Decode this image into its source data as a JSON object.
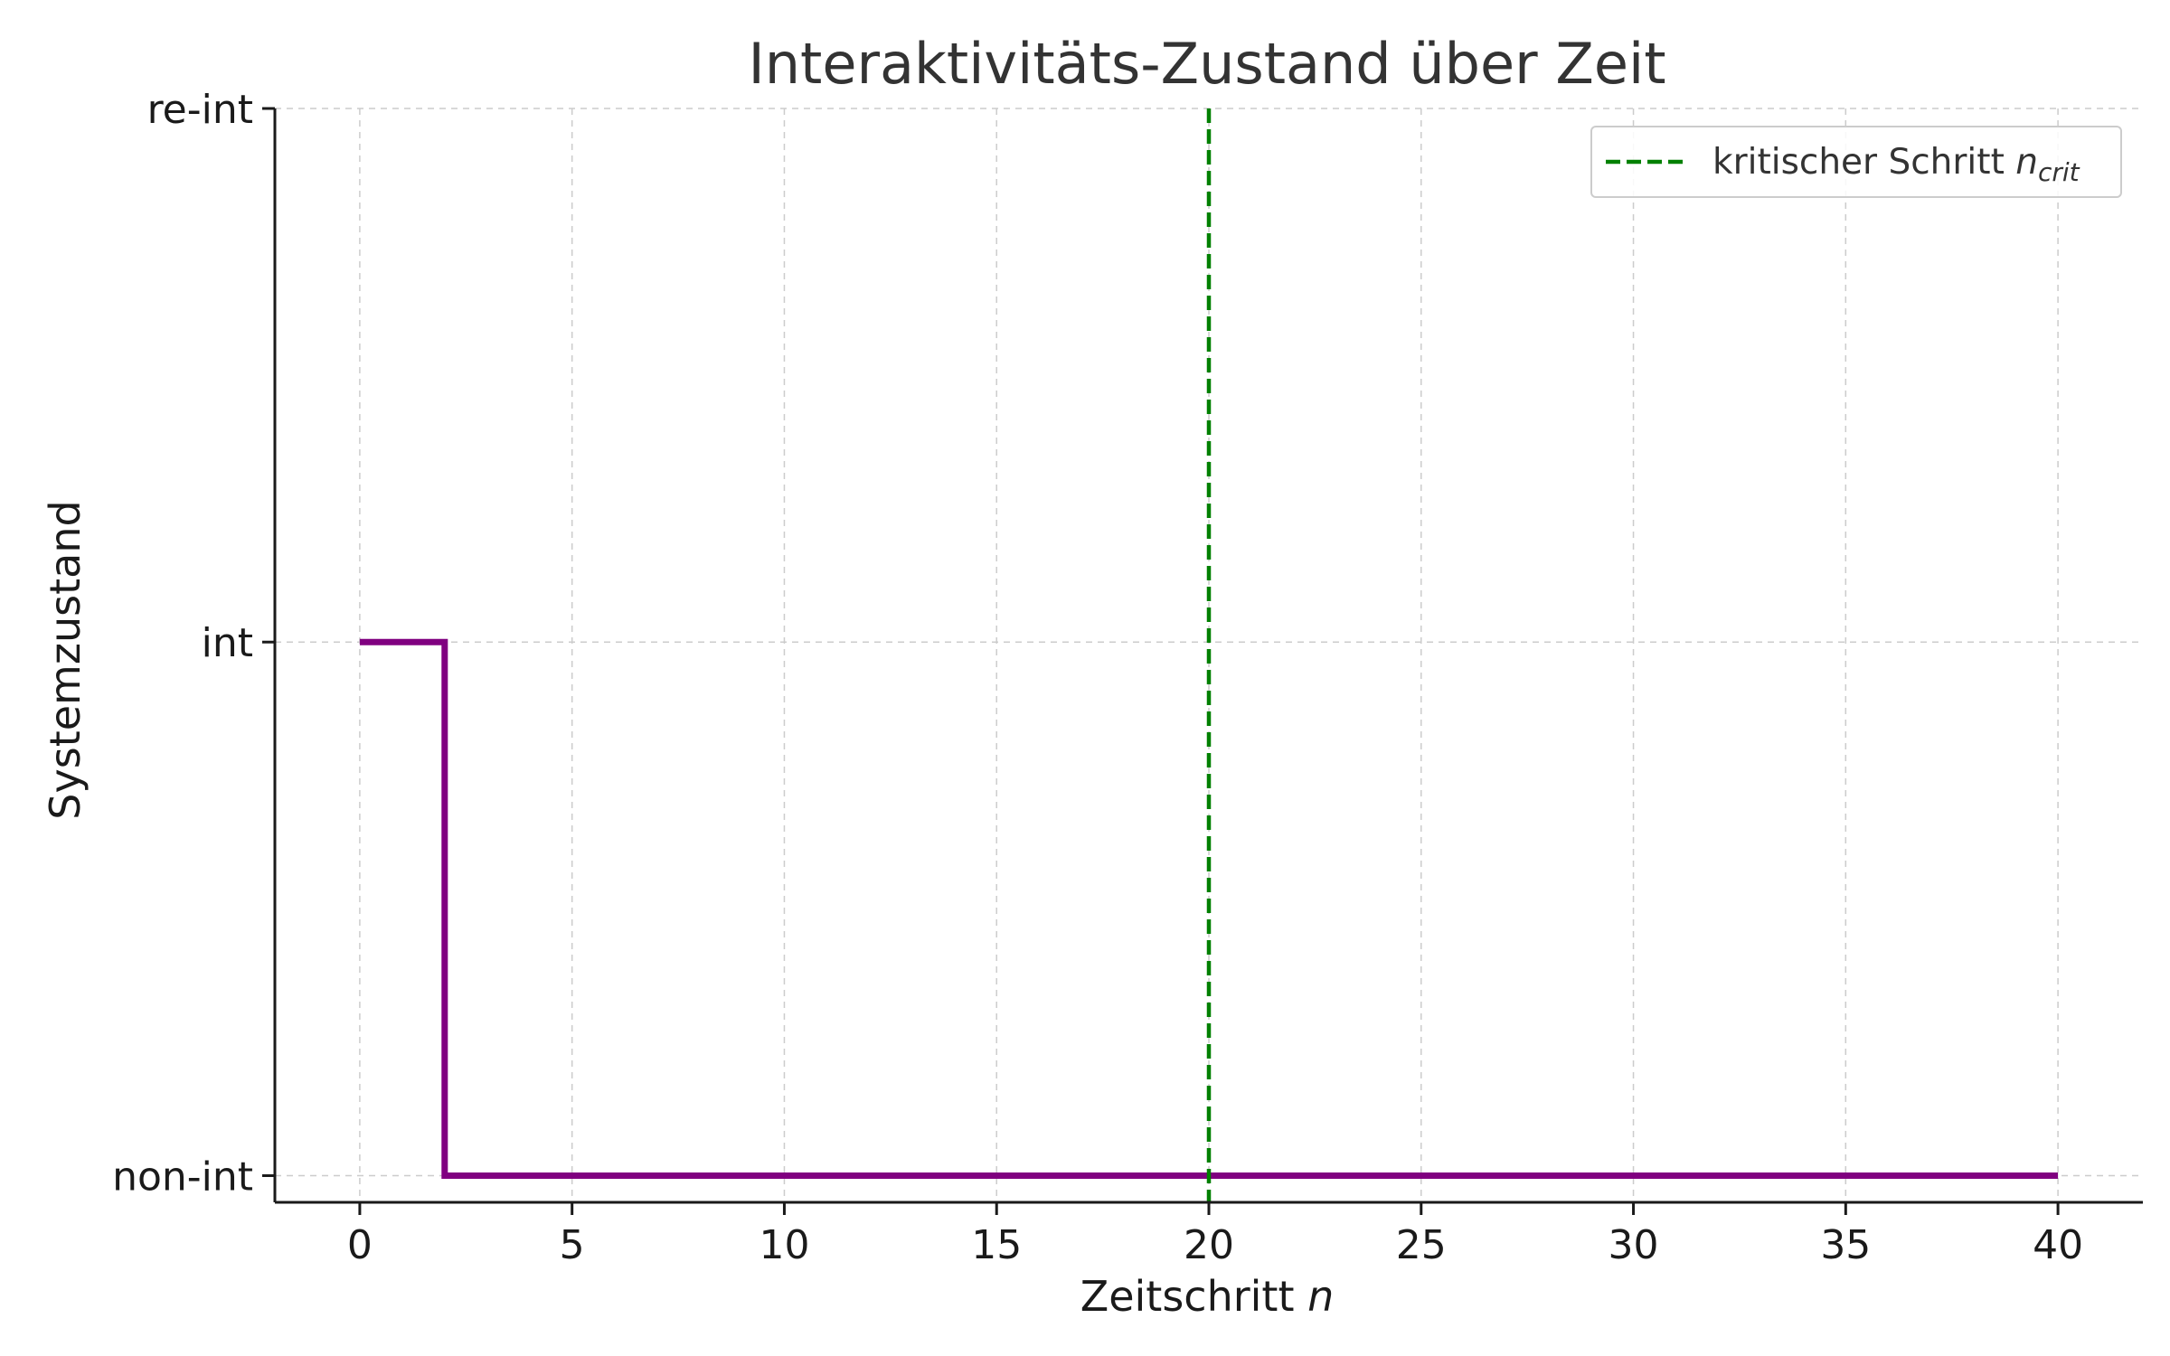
{
  "chart_data": {
    "type": "line",
    "title": "Interaktivitäts-Zustand über Zeit",
    "xlabel": "Zeitschritt",
    "xlabel_var": "n",
    "ylabel": "Systemzustand",
    "xlim": [
      -2,
      42
    ],
    "ylim": [
      -0.05,
      2
    ],
    "x_ticks": [
      0,
      5,
      10,
      15,
      20,
      25,
      30,
      35,
      40
    ],
    "y_ticks": [
      {
        "value": 0,
        "label": "non-int"
      },
      {
        "value": 1,
        "label": "int"
      },
      {
        "value": 2,
        "label": "re-int"
      }
    ],
    "grid": true,
    "legend_position": "top-right",
    "series": [
      {
        "style": "step",
        "color": "#800080",
        "points": [
          {
            "x": 0,
            "y": 1
          },
          {
            "x": 2,
            "y": 1
          },
          {
            "x": 2,
            "y": 0
          },
          {
            "x": 40,
            "y": 0
          }
        ]
      }
    ],
    "vlines": [
      {
        "x": 20,
        "color": "#008000",
        "style": "dashed",
        "label_text": "kritischer Schritt",
        "label_var": "n",
        "label_sub": "crit"
      }
    ]
  }
}
